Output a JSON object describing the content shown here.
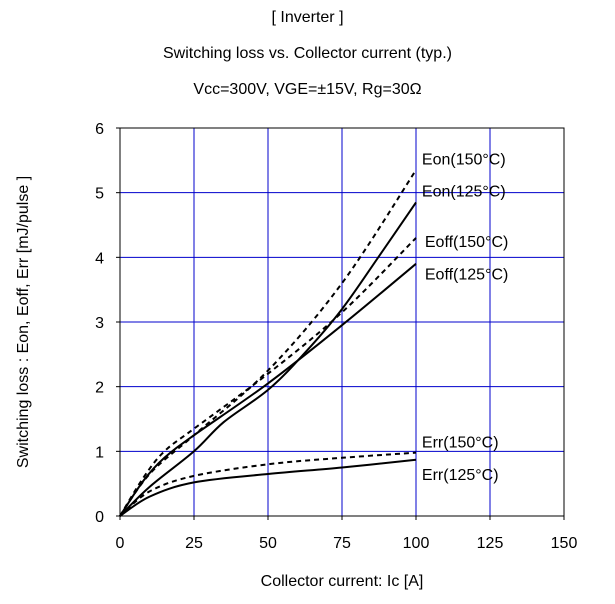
{
  "titles": {
    "line1": "[ Inverter ]",
    "line2": "Switching loss  vs.  Collector current  (typ.)",
    "line3": "Vcc=300V,   VGE=±15V,   Rg=30Ω"
  },
  "chart_data": {
    "type": "line",
    "xlabel": "Collector current: Ic [A]",
    "ylabel": "Switching loss  : Eon, Eoff, Err  [mJ/pulse ]",
    "xlim": [
      0,
      150
    ],
    "ylim": [
      0,
      6
    ],
    "xticks": [
      0,
      25,
      50,
      75,
      100,
      125,
      150
    ],
    "yticks": [
      0,
      1,
      2,
      3,
      4,
      5,
      6
    ],
    "grid": true,
    "grid_color": "#0000cc",
    "series": [
      {
        "name": "Eon(150°C)",
        "style": "dashed",
        "x": [
          0,
          10,
          25,
          50,
          75,
          100
        ],
        "y": [
          0,
          0.65,
          1.25,
          2.25,
          3.6,
          5.35
        ]
      },
      {
        "name": "Eon(125°C)",
        "style": "solid",
        "x": [
          0,
          10,
          25,
          35,
          50,
          62,
          75,
          88,
          100
        ],
        "y": [
          0,
          0.45,
          1.0,
          1.45,
          1.95,
          2.5,
          3.2,
          4.05,
          4.85
        ]
      },
      {
        "name": "Eoff(150°C)",
        "style": "dashed",
        "x": [
          0,
          8,
          15,
          25,
          50,
          75,
          100
        ],
        "y": [
          0,
          0.6,
          1.0,
          1.35,
          2.2,
          3.15,
          4.3
        ]
      },
      {
        "name": "Eoff(125°C)",
        "style": "solid",
        "x": [
          0,
          8,
          15,
          25,
          50,
          75,
          100
        ],
        "y": [
          0,
          0.55,
          0.9,
          1.25,
          2.05,
          2.95,
          3.9
        ]
      },
      {
        "name": "Err(150°C)",
        "style": "dashed",
        "x": [
          0,
          10,
          25,
          50,
          75,
          100
        ],
        "y": [
          0,
          0.38,
          0.62,
          0.8,
          0.9,
          0.98
        ]
      },
      {
        "name": "Err(125°C)",
        "style": "solid",
        "x": [
          0,
          10,
          25,
          50,
          75,
          100
        ],
        "y": [
          0,
          0.3,
          0.52,
          0.65,
          0.75,
          0.87
        ]
      }
    ],
    "annotations": [
      {
        "text": "Eon(150°C)",
        "x": 102,
        "y": 5.53
      },
      {
        "text": "Eon(125°C)",
        "x": 102,
        "y": 5.03
      },
      {
        "text": "Eoff(150°C)",
        "x": 103,
        "y": 4.25
      },
      {
        "text": "Eoff(125°C)",
        "x": 103,
        "y": 3.75
      },
      {
        "text": "Err(150°C)",
        "x": 102,
        "y": 1.15
      },
      {
        "text": "Err(125°C)",
        "x": 102,
        "y": 0.65
      }
    ]
  }
}
